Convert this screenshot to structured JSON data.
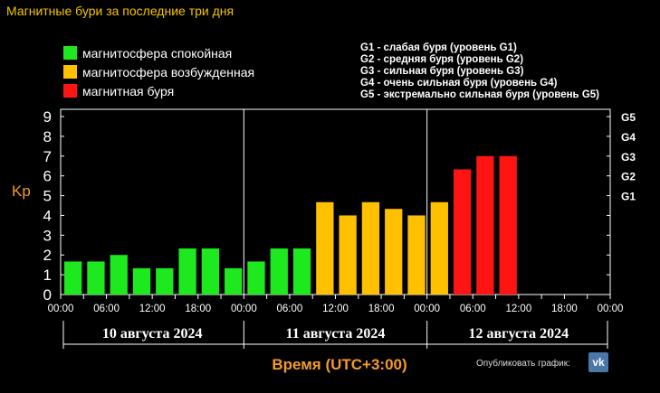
{
  "title": "Магнитные бури за последние три дня",
  "legend": [
    {
      "label": "магнитосфера спокойная",
      "color": "#1ee81e"
    },
    {
      "label": "магнитосфера возбужденная",
      "color": "#ffc000"
    },
    {
      "label": "магнитная буря",
      "color": "#ff1414"
    }
  ],
  "g_levels": [
    "G1 - слабая буря (уровень G1)",
    "G2 - средняя буря (уровень G2)",
    "G3 - сильная буря (уровень G3)",
    "G4 - очень сильная буря (уровень G4)",
    "G5 - экстремально сильная буря (уровень G5)"
  ],
  "ylabel": "Kp",
  "xlabel": "Время (UTC+3:00)",
  "publish_label": "Опубликовать график:",
  "vk_icon": "vk-icon",
  "chart_data": {
    "type": "bar",
    "ylim": [
      0,
      9
    ],
    "y_ticks": [
      "0",
      "1",
      "2",
      "3",
      "4",
      "5",
      "6",
      "7",
      "8",
      "9"
    ],
    "g_ticks": [
      {
        "label": "G1",
        "kp": 5
      },
      {
        "label": "G2",
        "kp": 6
      },
      {
        "label": "G3",
        "kp": 7
      },
      {
        "label": "G4",
        "kp": 8
      },
      {
        "label": "G5",
        "kp": 9
      }
    ],
    "x_tick_labels": [
      "00:00",
      "06:00",
      "12:00",
      "18:00",
      "00:00",
      "06:00",
      "12:00",
      "18:00",
      "00:00",
      "06:00",
      "12:00",
      "18:00",
      "00:00"
    ],
    "days": [
      "10 августа 2024",
      "11 августа 2024",
      "12 августа 2024"
    ],
    "colors": {
      "quiet": "#1ee81e",
      "active": "#ffc000",
      "storm": "#ff1414"
    },
    "values": [
      1.67,
      1.67,
      2.0,
      1.33,
      1.33,
      2.33,
      2.33,
      1.33,
      1.67,
      2.33,
      2.33,
      4.67,
      4.0,
      4.67,
      4.33,
      4.0,
      4.67,
      6.33,
      7.0,
      7.0
    ],
    "levels": [
      "quiet",
      "quiet",
      "quiet",
      "quiet",
      "quiet",
      "quiet",
      "quiet",
      "quiet",
      "quiet",
      "quiet",
      "quiet",
      "active",
      "active",
      "active",
      "active",
      "active",
      "active",
      "storm",
      "storm",
      "storm"
    ]
  }
}
